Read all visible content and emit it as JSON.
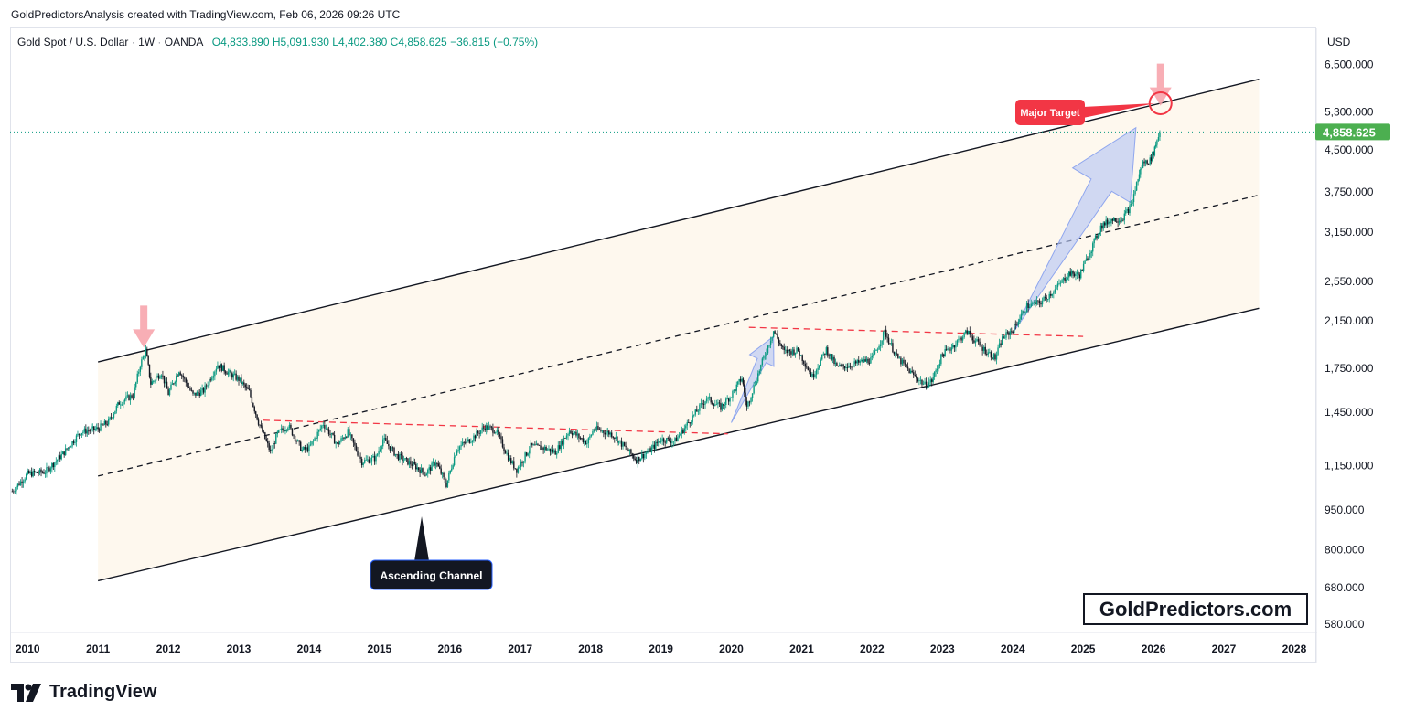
{
  "header": {
    "attribution": "GoldPredictorsAnalysis created with TradingView.com, Feb 06, 2026 09:26 UTC"
  },
  "legend": {
    "symbol": "Gold Spot / U.S. Dollar",
    "interval": "1W",
    "exchange": "OANDA",
    "open": "O4,833.890",
    "high": "H5,091.930",
    "low": "L4,402.380",
    "close": "C4,858.625",
    "change": "−36.815 (−0.75%)"
  },
  "price_axis": {
    "currency": "USD",
    "last_price_label": "4,858.625",
    "last_price_color": "#4caf50"
  },
  "annotations": {
    "major_target": "Major Target",
    "ascending_channel": "Ascending Channel",
    "watermark": "GoldPredictors.com"
  },
  "brand": {
    "name": "TradingView"
  },
  "colors": {
    "up": "#089981",
    "down": "#131722",
    "channel_fill": "#fef8ee",
    "trendline": "#f23645",
    "arrow": "#b7c6f5",
    "target_label": "#f23645"
  },
  "chart_data": {
    "type": "line",
    "scale": "log",
    "x_unit": "year",
    "xlim": [
      2009.75,
      2028.3
    ],
    "ylim": [
      560,
      7600
    ],
    "x_ticks": [
      "2010",
      "2011",
      "2012",
      "2013",
      "2014",
      "2015",
      "2016",
      "2017",
      "2018",
      "2019",
      "2020",
      "2021",
      "2022",
      "2023",
      "2024",
      "2025",
      "2026",
      "2027",
      "2028"
    ],
    "y_ticks": [
      {
        "value": 580,
        "label": "580.000"
      },
      {
        "value": 680,
        "label": "680.000"
      },
      {
        "value": 800,
        "label": "800.000"
      },
      {
        "value": 950,
        "label": "950.000"
      },
      {
        "value": 1150,
        "label": "1,150.000"
      },
      {
        "value": 1450,
        "label": "1,450.000"
      },
      {
        "value": 1750,
        "label": "1,750.000"
      },
      {
        "value": 2150,
        "label": "2,150.000"
      },
      {
        "value": 2550,
        "label": "2,550.000"
      },
      {
        "value": 3150,
        "label": "3,150.000"
      },
      {
        "value": 3750,
        "label": "3,750.000"
      },
      {
        "value": 4500,
        "label": "4,500.000"
      },
      {
        "value": 5300,
        "label": "5,300.000"
      },
      {
        "value": 6500,
        "label": "6,500.000"
      }
    ],
    "last_price": 4858.625,
    "series": [
      {
        "points": [
          [
            2009.78,
            1030
          ],
          [
            2010.0,
            1110
          ],
          [
            2010.25,
            1120
          ],
          [
            2010.5,
            1210
          ],
          [
            2010.75,
            1330
          ],
          [
            2011.0,
            1350
          ],
          [
            2011.15,
            1390
          ],
          [
            2011.3,
            1510
          ],
          [
            2011.5,
            1560
          ],
          [
            2011.6,
            1780
          ],
          [
            2011.68,
            1890
          ],
          [
            2011.75,
            1640
          ],
          [
            2011.9,
            1720
          ],
          [
            2012.0,
            1570
          ],
          [
            2012.15,
            1740
          ],
          [
            2012.35,
            1560
          ],
          [
            2012.5,
            1590
          ],
          [
            2012.7,
            1780
          ],
          [
            2012.85,
            1720
          ],
          [
            2013.0,
            1670
          ],
          [
            2013.15,
            1580
          ],
          [
            2013.28,
            1390
          ],
          [
            2013.45,
            1220
          ],
          [
            2013.55,
            1320
          ],
          [
            2013.7,
            1370
          ],
          [
            2013.9,
            1230
          ],
          [
            2014.0,
            1240
          ],
          [
            2014.2,
            1380
          ],
          [
            2014.4,
            1260
          ],
          [
            2014.55,
            1330
          ],
          [
            2014.75,
            1170
          ],
          [
            2014.95,
            1190
          ],
          [
            2015.05,
            1290
          ],
          [
            2015.25,
            1200
          ],
          [
            2015.5,
            1150
          ],
          [
            2015.65,
            1110
          ],
          [
            2015.8,
            1170
          ],
          [
            2015.95,
            1060
          ],
          [
            2016.1,
            1240
          ],
          [
            2016.3,
            1290
          ],
          [
            2016.5,
            1360
          ],
          [
            2016.65,
            1340
          ],
          [
            2016.85,
            1180
          ],
          [
            2016.95,
            1130
          ],
          [
            2017.15,
            1250
          ],
          [
            2017.35,
            1240
          ],
          [
            2017.5,
            1220
          ],
          [
            2017.7,
            1340
          ],
          [
            2017.95,
            1270
          ],
          [
            2018.05,
            1350
          ],
          [
            2018.3,
            1320
          ],
          [
            2018.5,
            1240
          ],
          [
            2018.65,
            1180
          ],
          [
            2018.85,
            1230
          ],
          [
            2019.0,
            1290
          ],
          [
            2019.2,
            1280
          ],
          [
            2019.45,
            1420
          ],
          [
            2019.65,
            1540
          ],
          [
            2019.85,
            1480
          ],
          [
            2020.0,
            1560
          ],
          [
            2020.15,
            1680
          ],
          [
            2020.22,
            1480
          ],
          [
            2020.4,
            1740
          ],
          [
            2020.6,
            2060
          ],
          [
            2020.75,
            1880
          ],
          [
            2020.95,
            1890
          ],
          [
            2021.15,
            1690
          ],
          [
            2021.35,
            1900
          ],
          [
            2021.5,
            1760
          ],
          [
            2021.65,
            1770
          ],
          [
            2021.85,
            1800
          ],
          [
            2022.0,
            1820
          ],
          [
            2022.18,
            2050
          ],
          [
            2022.35,
            1840
          ],
          [
            2022.55,
            1720
          ],
          [
            2022.75,
            1630
          ],
          [
            2022.85,
            1660
          ],
          [
            2023.0,
            1860
          ],
          [
            2023.15,
            1930
          ],
          [
            2023.35,
            2050
          ],
          [
            2023.55,
            1920
          ],
          [
            2023.75,
            1830
          ],
          [
            2023.85,
            1990
          ],
          [
            2024.0,
            2070
          ],
          [
            2024.2,
            2290
          ],
          [
            2024.4,
            2330
          ],
          [
            2024.6,
            2460
          ],
          [
            2024.8,
            2640
          ],
          [
            2024.95,
            2620
          ],
          [
            2025.1,
            2900
          ],
          [
            2025.25,
            3230
          ],
          [
            2025.4,
            3330
          ],
          [
            2025.55,
            3340
          ],
          [
            2025.68,
            3530
          ],
          [
            2025.78,
            3980
          ],
          [
            2025.85,
            4250
          ],
          [
            2025.95,
            4300
          ],
          [
            2026.0,
            4450
          ],
          [
            2026.05,
            4700
          ],
          [
            2026.09,
            4860
          ]
        ]
      }
    ],
    "channel": {
      "upper": [
        [
          2011.0,
          1800
        ],
        [
          2027.5,
          6100
        ]
      ],
      "middle": [
        [
          2011.0,
          1100
        ],
        [
          2027.5,
          3700
        ]
      ],
      "lower": [
        [
          2011.0,
          700
        ],
        [
          2027.5,
          2270
        ]
      ]
    },
    "trendlines": [
      [
        [
          2013.35,
          1400
        ],
        [
          2019.95,
          1320
        ]
      ],
      [
        [
          2020.25,
          2090
        ],
        [
          2025.0,
          2010
        ]
      ]
    ],
    "arrows_up": [
      [
        [
          2020.0,
          1385
        ],
        [
          2020.6,
          2010
        ]
      ],
      [
        [
          2024.0,
          2040
        ],
        [
          2025.75,
          4950
        ]
      ]
    ],
    "arrows_down": [
      [
        2011.65,
        1900
      ],
      [
        2026.1,
        5400
      ]
    ],
    "target_point": [
      2026.1,
      5500
    ]
  }
}
